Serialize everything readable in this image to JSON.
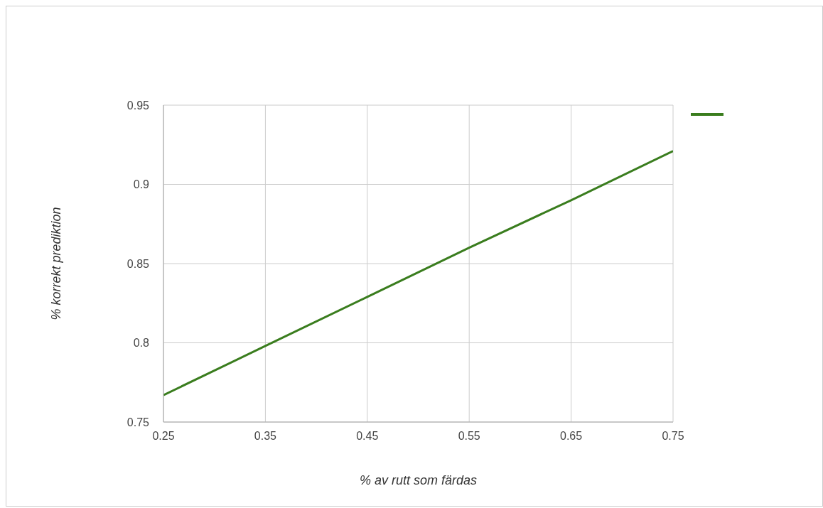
{
  "chart_data": {
    "type": "line",
    "xlabel": "% av rutt som färdas",
    "ylabel": "% korrekt prediktion",
    "x": [
      0.25,
      0.35,
      0.45,
      0.55,
      0.65,
      0.75
    ],
    "series": [
      {
        "color": "#3a7d1e",
        "values": [
          0.767,
          0.798,
          0.829,
          0.86,
          0.89,
          0.921
        ]
      }
    ],
    "xlim": [
      0.25,
      0.75
    ],
    "xticks": [
      0.25,
      0.35,
      0.45,
      0.55,
      0.65,
      0.75
    ],
    "ylim": [
      0.75,
      0.95
    ],
    "yticks": [
      0.75,
      0.8,
      0.85,
      0.9,
      0.95
    ],
    "grid": true,
    "marker": "none",
    "line_style": "solid"
  }
}
